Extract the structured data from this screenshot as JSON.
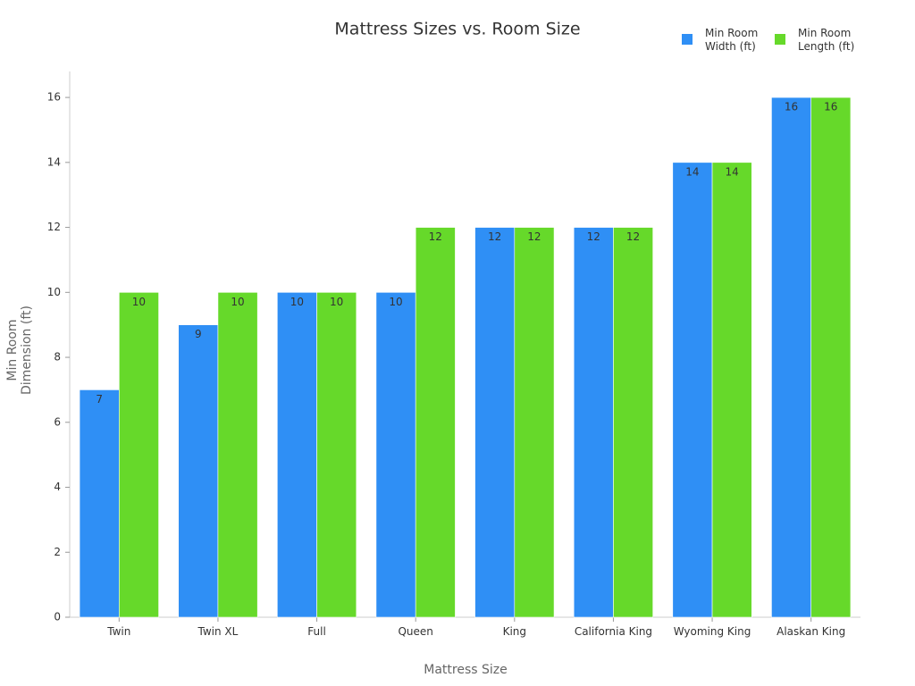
{
  "chart_data": {
    "type": "bar",
    "title": "Mattress Sizes vs. Room Size",
    "x_label": "Mattress Size",
    "y_label": "Min Room Dimension (ft)",
    "categories": [
      "Twin",
      "Twin XL",
      "Full",
      "Queen",
      "King",
      "California King",
      "Wyoming King",
      "Alaskan King"
    ],
    "series": [
      {
        "name": "Min Room Width (ft)",
        "color": "#2f8ff5",
        "values": [
          7,
          9,
          10,
          10,
          12,
          12,
          14,
          16
        ]
      },
      {
        "name": "Min Room Length (ft)",
        "color": "#66d92a",
        "values": [
          10,
          10,
          10,
          12,
          12,
          12,
          14,
          16
        ]
      }
    ],
    "ylim": [
      0,
      16.8
    ],
    "yticks": [
      0,
      2,
      4,
      6,
      8,
      10,
      12,
      14,
      16
    ],
    "grid": false,
    "legend": "top-right"
  }
}
